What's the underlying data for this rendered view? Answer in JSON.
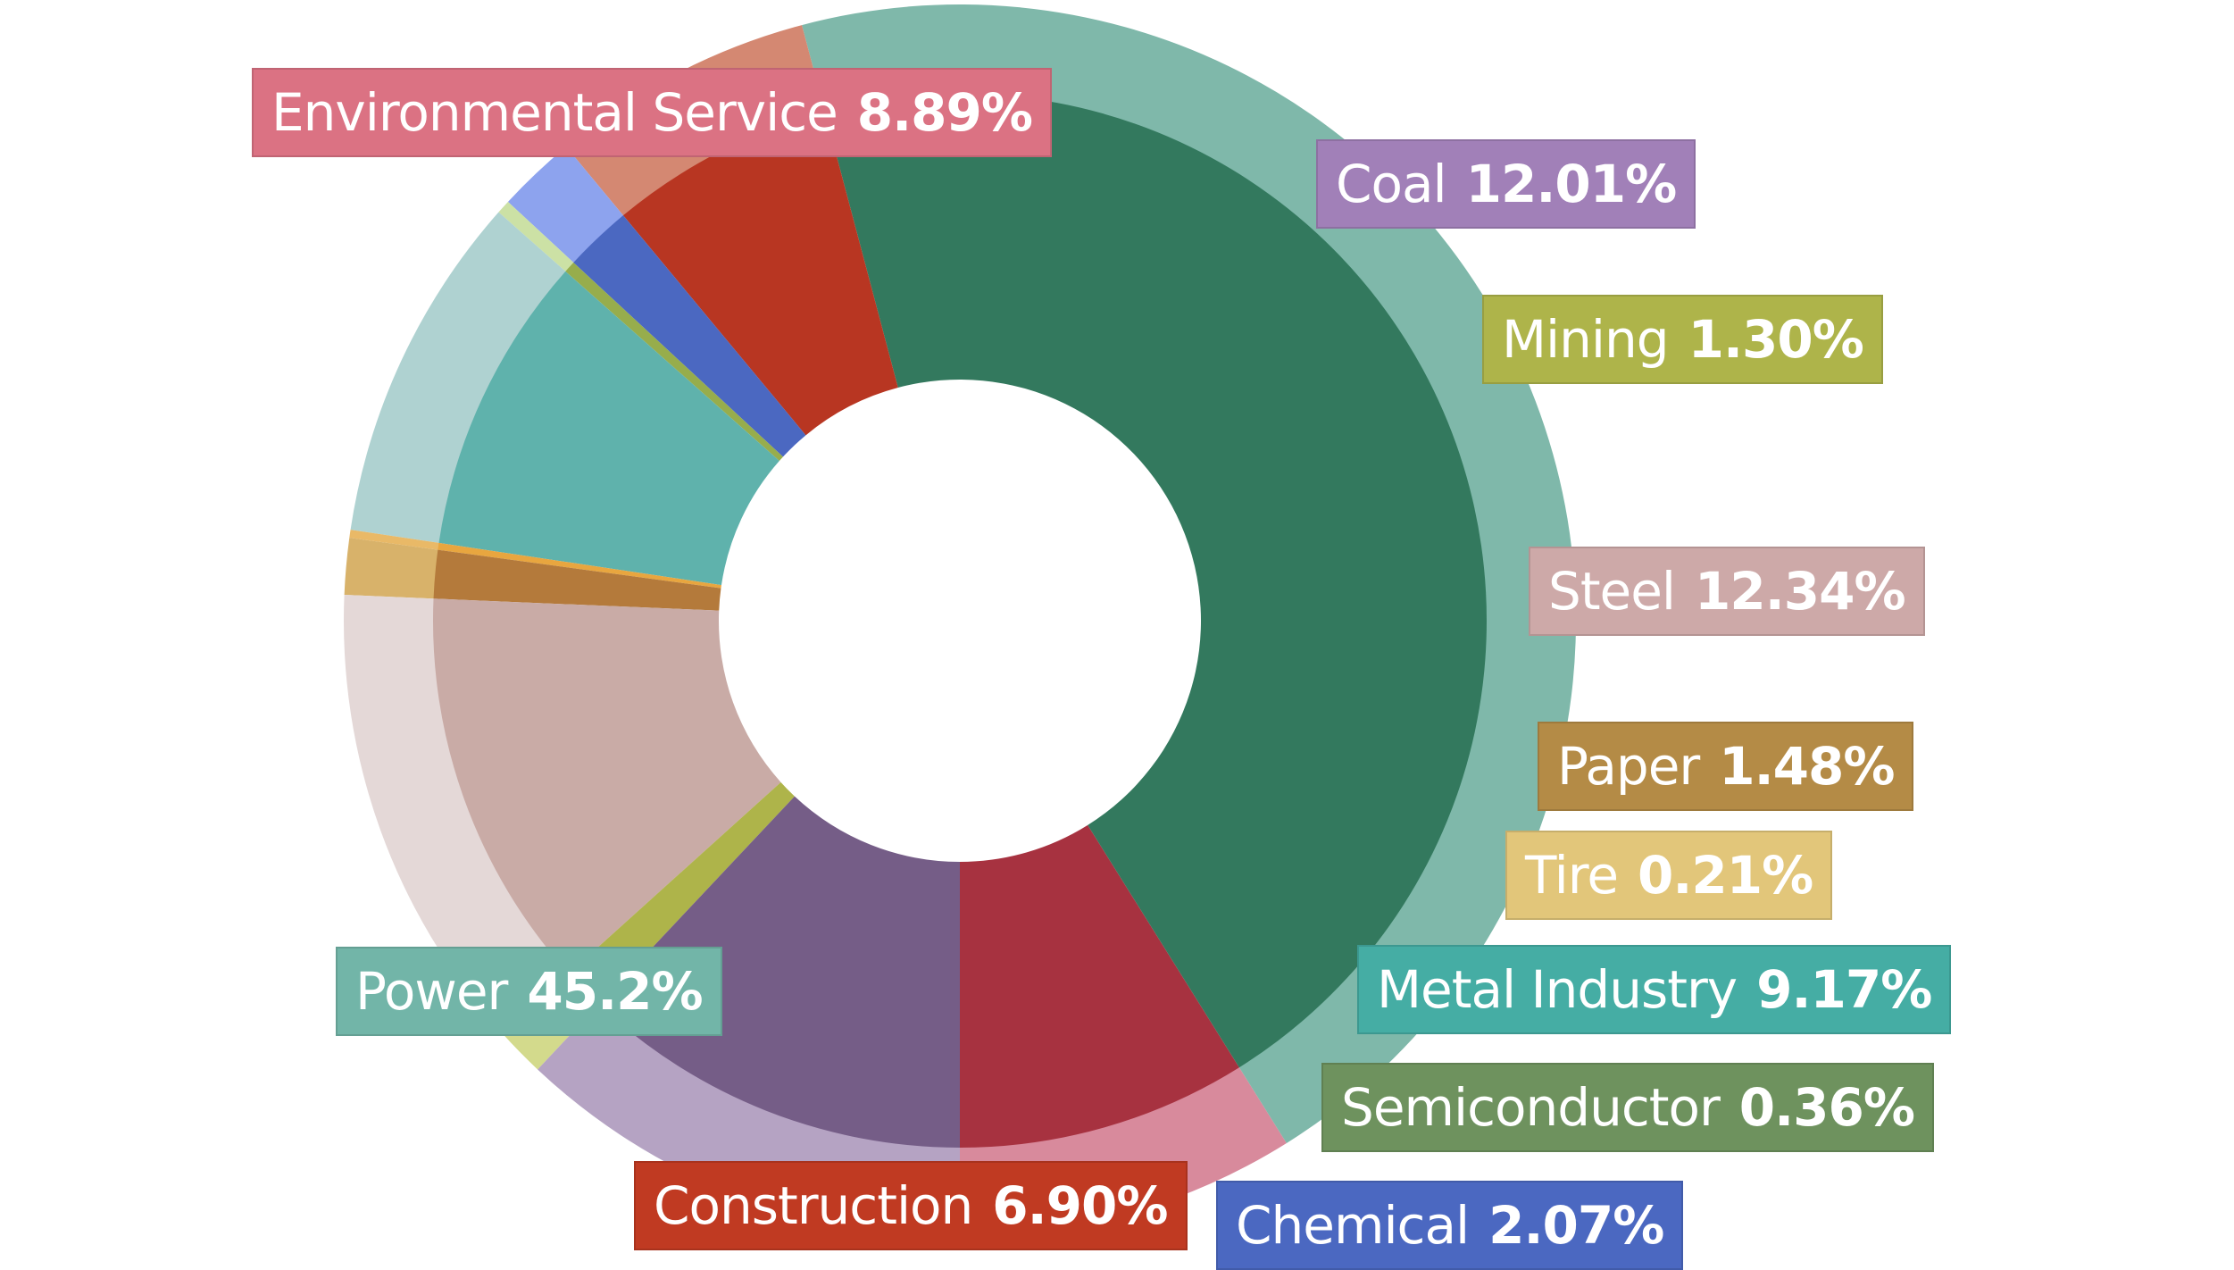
{
  "chart_data": {
    "type": "pie",
    "variant": "donut",
    "start_angle_deg": 270,
    "direction": "counterclockwise",
    "categories": [
      "Environmental Service",
      "Power",
      "Construction",
      "Chemical",
      "Semiconductor",
      "Metal Industry",
      "Tire",
      "Paper",
      "Steel",
      "Mining",
      "Coal"
    ],
    "values": [
      8.89,
      45.2,
      6.9,
      2.07,
      0.36,
      9.17,
      0.21,
      1.48,
      12.34,
      1.3,
      12.01
    ],
    "labels": [
      "8.89%",
      "45.2%",
      "6.90%",
      "2.07%",
      "0.36%",
      "9.17%",
      "0.21%",
      "1.48%",
      "12.34%",
      "1.30%",
      "12.01%"
    ],
    "colors": [
      "#A73240",
      "#33795E",
      "#B83622",
      "#4B68C1",
      "#97AD4C",
      "#5FB2AC",
      "#E8A63F",
      "#B47A3B",
      "#C9ABA6",
      "#AEB44A",
      "#755D87"
    ],
    "outer_colors": [
      "#D88A9C",
      "#7FB8AA",
      "#D48872",
      "#8DA3EE",
      "#CCE1A5",
      "#AFD2D1",
      "#E9B967",
      "#D8B26A",
      "#E4D8D7",
      "#D3DA8C",
      "#B5A3C3"
    ],
    "label_colors": [
      "#DB7283",
      "#72B5A8",
      "#C03A22",
      "#4B68C1",
      "#6E925E",
      "#45ADA4",
      "#E2C67A",
      "#B48B46",
      "#CDA9A8",
      "#AEB44A",
      "#A180B8"
    ]
  }
}
